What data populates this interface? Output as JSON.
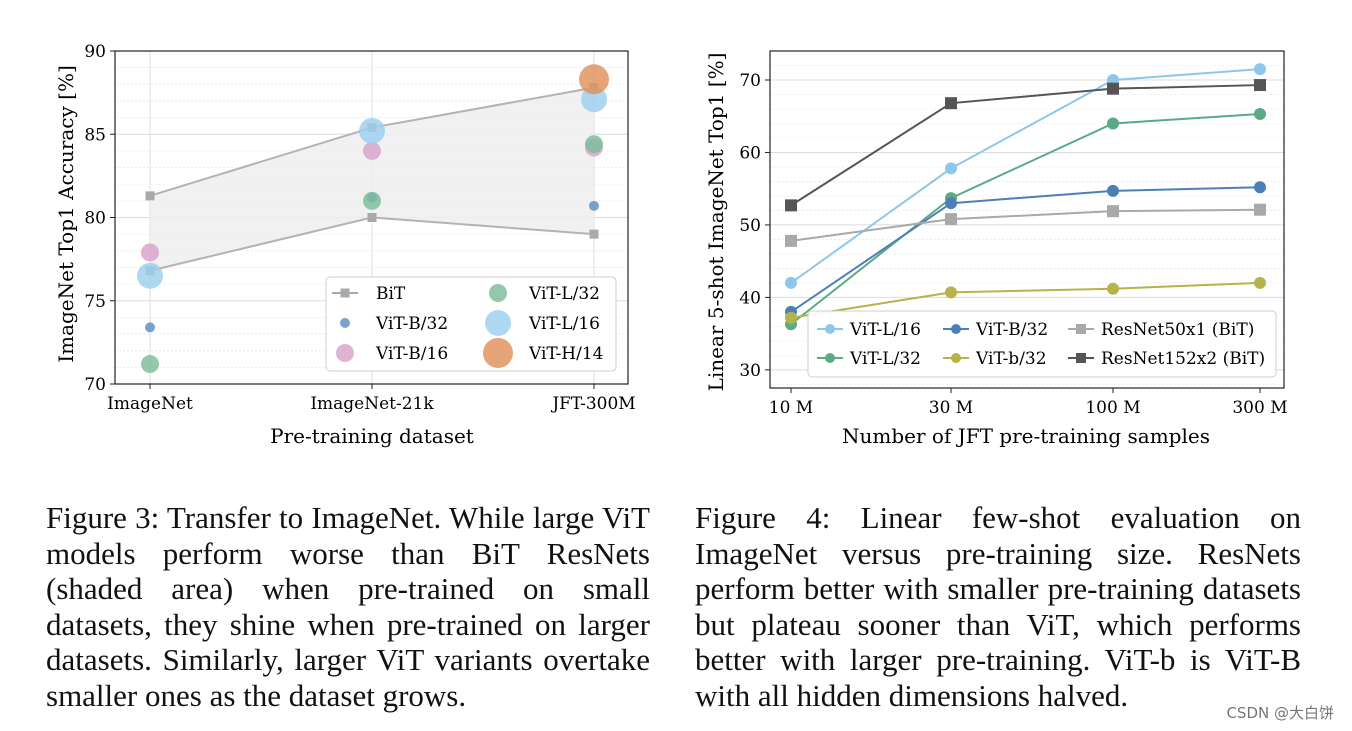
{
  "figure3": {
    "chart_data": {
      "type": "scatter",
      "categories": [
        "ImageNet",
        "ImageNet-21k",
        "JFT-300M"
      ],
      "xlabel": "Pre-training dataset",
      "ylabel": "ImageNet Top1 Accuracy [%]",
      "ylim": [
        70,
        90
      ],
      "yticks": [
        70,
        75,
        80,
        85,
        90
      ],
      "shaded_range": {
        "name": "BiT",
        "upper": [
          81.3,
          85.4,
          87.8
        ],
        "lower": [
          76.8,
          80.0,
          79.0
        ]
      },
      "series": [
        {
          "name": "BiT",
          "marker": "square",
          "color": "#a9a9a9",
          "points": [
            [
              0,
              81.3
            ],
            [
              0,
              76.8
            ],
            [
              1,
              85.4
            ],
            [
              1,
              80.0
            ],
            [
              2,
              87.8
            ],
            [
              2,
              79.0
            ]
          ]
        },
        {
          "name": "ViT-B/32",
          "color": "#5b8fc2",
          "size": "small",
          "values": [
            73.4,
            81.2,
            80.7
          ]
        },
        {
          "name": "ViT-B/16",
          "color": "#d8a2c8",
          "size": "medium",
          "values": [
            77.9,
            84.0,
            84.2
          ]
        },
        {
          "name": "ViT-L/32",
          "color": "#7cbc9a",
          "size": "medium",
          "values": [
            71.2,
            81.0,
            84.4
          ]
        },
        {
          "name": "ViT-L/16",
          "color": "#9ccfee",
          "size": "large",
          "values": [
            76.5,
            85.2,
            87.1
          ]
        },
        {
          "name": "ViT-H/14",
          "color": "#e0915a",
          "size": "xlarge",
          "values": [
            null,
            null,
            88.3
          ]
        }
      ],
      "legend_position": "bottom-right"
    },
    "caption": "Figure 3:  Transfer to ImageNet.  While large ViT models perform worse than BiT ResNets (shaded area) when pre-trained on small datasets, they shine when pre-trained on larger datasets.  Similarly, larger ViT variants overtake smaller ones as the dataset grows."
  },
  "figure4": {
    "chart_data": {
      "type": "line",
      "x": [
        "10 M",
        "30 M",
        "100 M",
        "300 M"
      ],
      "xlabel": "Number of JFT pre-training samples",
      "ylabel": "Linear 5-shot ImageNet Top1 [%]",
      "ylim": [
        27.5,
        74
      ],
      "yticks": [
        30,
        40,
        50,
        60,
        70
      ],
      "series": [
        {
          "name": "ViT-L/16",
          "color": "#8ec6ec",
          "marker": "circle",
          "values": [
            42.0,
            57.8,
            70.0,
            71.5
          ]
        },
        {
          "name": "ViT-L/32",
          "color": "#5aaa84",
          "marker": "circle",
          "values": [
            36.3,
            53.7,
            64.0,
            65.3
          ]
        },
        {
          "name": "ViT-B/32",
          "color": "#4c7fb8",
          "marker": "circle",
          "values": [
            38.0,
            53.0,
            54.7,
            55.2
          ]
        },
        {
          "name": "ViT-b/32",
          "color": "#b5b34a",
          "marker": "circle",
          "values": [
            37.2,
            40.7,
            41.2,
            42.0
          ]
        },
        {
          "name": "ResNet50x1 (BiT)",
          "color": "#a9a9a9",
          "marker": "square",
          "values": [
            47.8,
            50.8,
            51.9,
            52.1
          ]
        },
        {
          "name": "ResNet152x2 (BiT)",
          "color": "#555555",
          "marker": "square",
          "values": [
            52.7,
            66.8,
            68.8,
            69.3
          ]
        }
      ],
      "legend_position": "bottom-right"
    },
    "caption": "Figure 4:  Linear few-shot evaluation on ImageNet versus pre-training size.  ResNets perform better with smaller pre-training datasets but plateau sooner than ViT, which performs better with larger pre-training.  ViT-b is ViT-B with all hidden dimensions halved."
  },
  "watermark": "CSDN @大白饼"
}
